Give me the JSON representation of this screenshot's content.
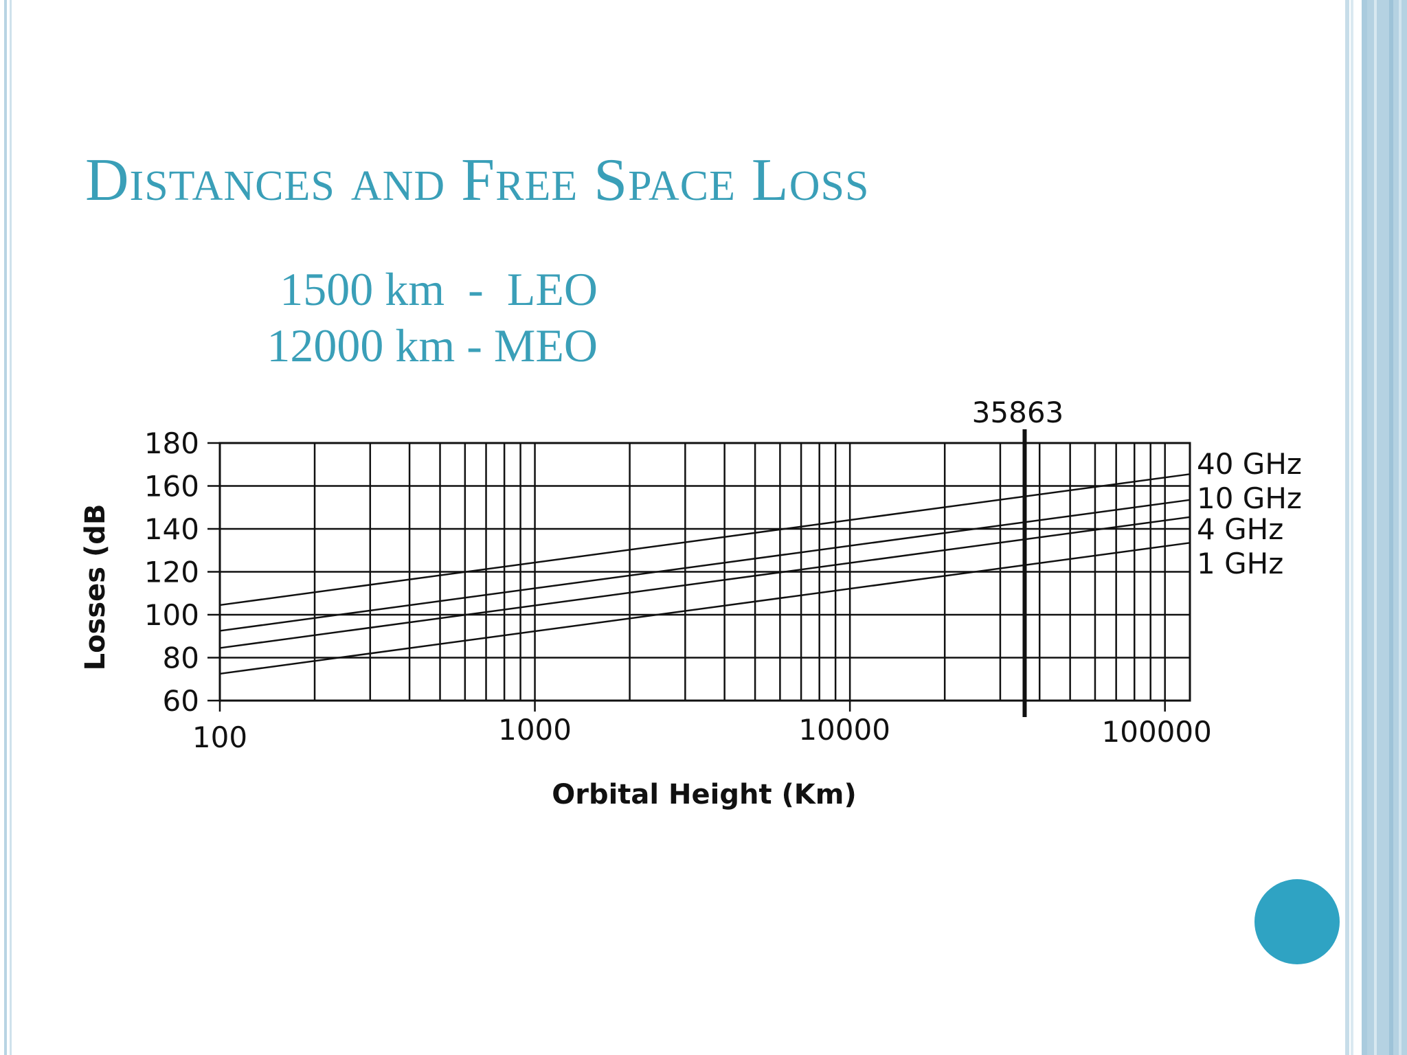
{
  "slide": {
    "title": "Distances and Free Space Loss",
    "orbit_lines": [
      "1500 km  -  LEO",
      "12000 km - MEO"
    ],
    "accent_color": "#3a9fb8",
    "nav_dot_color": "#2fa3c3"
  },
  "chart_data": {
    "type": "line",
    "title": "",
    "xlabel": "Orbital Height (Km)",
    "ylabel": "Losses (dB",
    "xscale": "log",
    "xlim": [
      100,
      120000
    ],
    "ylim": [
      60,
      180
    ],
    "x_ticks": [
      {
        "value": 100,
        "label": "100"
      },
      {
        "value": 1000,
        "label": "1000"
      },
      {
        "value": 10000,
        "label": "10000"
      },
      {
        "value": 100000,
        "label": "100000"
      }
    ],
    "y_ticks": [
      60,
      80,
      100,
      120,
      140,
      160,
      180
    ],
    "y_tick_labels": [
      "60",
      "80",
      "100",
      "120",
      "140",
      "160",
      "180"
    ],
    "grid": true,
    "legend": "right",
    "marker_line": {
      "value": 35863,
      "label": "35863"
    },
    "series": [
      {
        "name": "40 GHz",
        "x": [
          100,
          120000
        ],
        "y": [
          104.5,
          165.5
        ]
      },
      {
        "name": "10 GHz",
        "x": [
          100,
          120000
        ],
        "y": [
          92.5,
          153.5
        ]
      },
      {
        "name": "4 GHz",
        "x": [
          100,
          120000
        ],
        "y": [
          84.5,
          145.5
        ]
      },
      {
        "name": "1 GHz",
        "x": [
          100,
          120000
        ],
        "y": [
          72.5,
          133.5
        ]
      }
    ]
  }
}
